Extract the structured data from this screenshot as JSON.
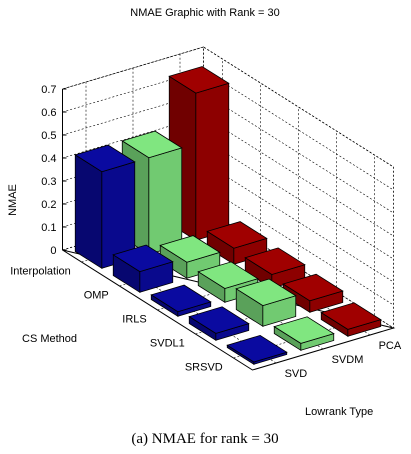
{
  "chart_data": {
    "type": "bar3d",
    "title": "NMAE Graphic with Rank = 30",
    "zlabel": "NMAE",
    "xlabel": "CS Method",
    "ylabel": "Lowrank Type",
    "caption": "(a) NMAE for rank = 30",
    "categories": [
      "Interpolation",
      "OMP",
      "IRLS",
      "SVDL1",
      "SRSVD"
    ],
    "series": [
      {
        "name": "SVD",
        "color": "#0a0aa0",
        "values": [
          0.42,
          0.09,
          0.02,
          0.03,
          0.01
        ]
      },
      {
        "name": "SVDM",
        "color": "#80e680",
        "values": [
          0.42,
          0.07,
          0.06,
          0.09,
          0.03
        ]
      },
      {
        "name": "PCA",
        "color": "#a00000",
        "values": [
          0.64,
          0.07,
          0.06,
          0.05,
          0.03
        ]
      }
    ],
    "zlim": [
      0,
      0.7
    ],
    "zticks": [
      0,
      0.1,
      0.2,
      0.3,
      0.4,
      0.5,
      0.6,
      0.7
    ],
    "grid": true
  }
}
